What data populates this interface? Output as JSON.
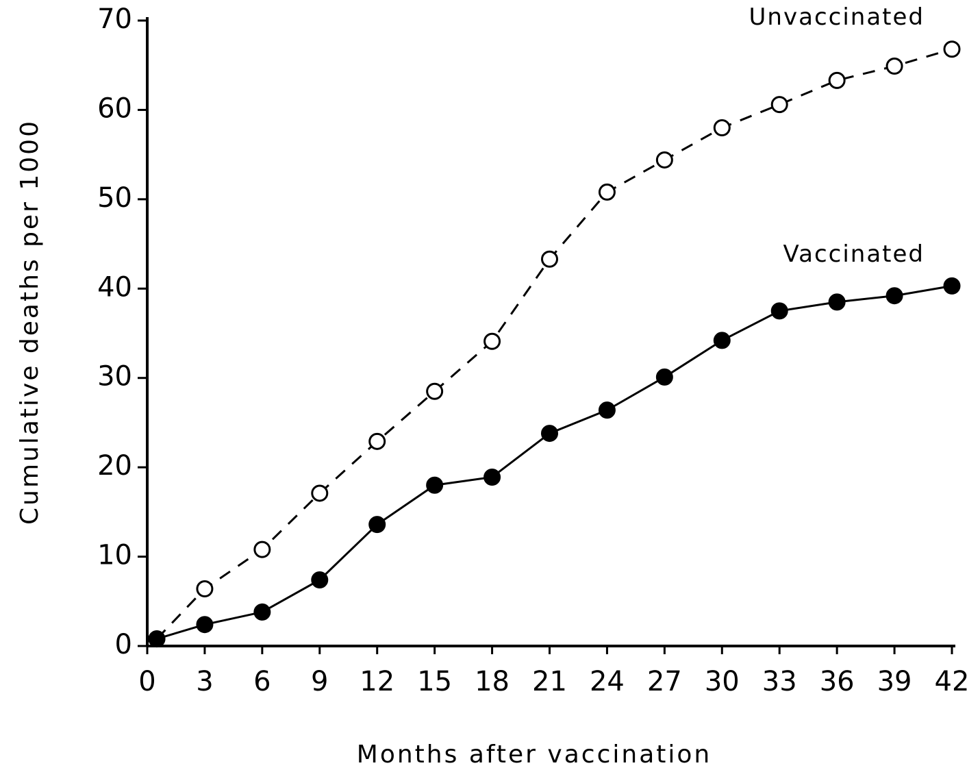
{
  "chart_data": {
    "type": "line",
    "x_label": "Months after vaccination",
    "y_label": "Cumulative deaths per 1000",
    "x": [
      0.5,
      3,
      6,
      9,
      12,
      15,
      18,
      21,
      24,
      27,
      30,
      33,
      36,
      39,
      42
    ],
    "series": [
      {
        "name": "Unvaccinated",
        "color": "#000000",
        "line_style": "dashed",
        "marker": "open",
        "values": [
          0.8,
          6.4,
          10.8,
          17.1,
          22.9,
          28.5,
          34.1,
          43.3,
          50.8,
          54.4,
          58.0,
          60.6,
          63.3,
          64.9,
          66.8
        ]
      },
      {
        "name": "Vaccinated",
        "color": "#000000",
        "line_style": "solid",
        "marker": "filled",
        "values": [
          0.8,
          2.4,
          3.8,
          7.4,
          13.6,
          18.0,
          18.9,
          23.8,
          26.4,
          30.1,
          34.2,
          37.5,
          38.5,
          39.2,
          40.3
        ]
      }
    ],
    "xlim": [
      0,
      42
    ],
    "xticks": [
      0,
      3,
      6,
      9,
      12,
      15,
      18,
      21,
      24,
      27,
      30,
      33,
      36,
      39,
      42
    ],
    "ylim": [
      0,
      70
    ],
    "yticks": [
      0,
      10,
      20,
      30,
      40,
      50,
      60,
      70
    ],
    "grid": false
  }
}
